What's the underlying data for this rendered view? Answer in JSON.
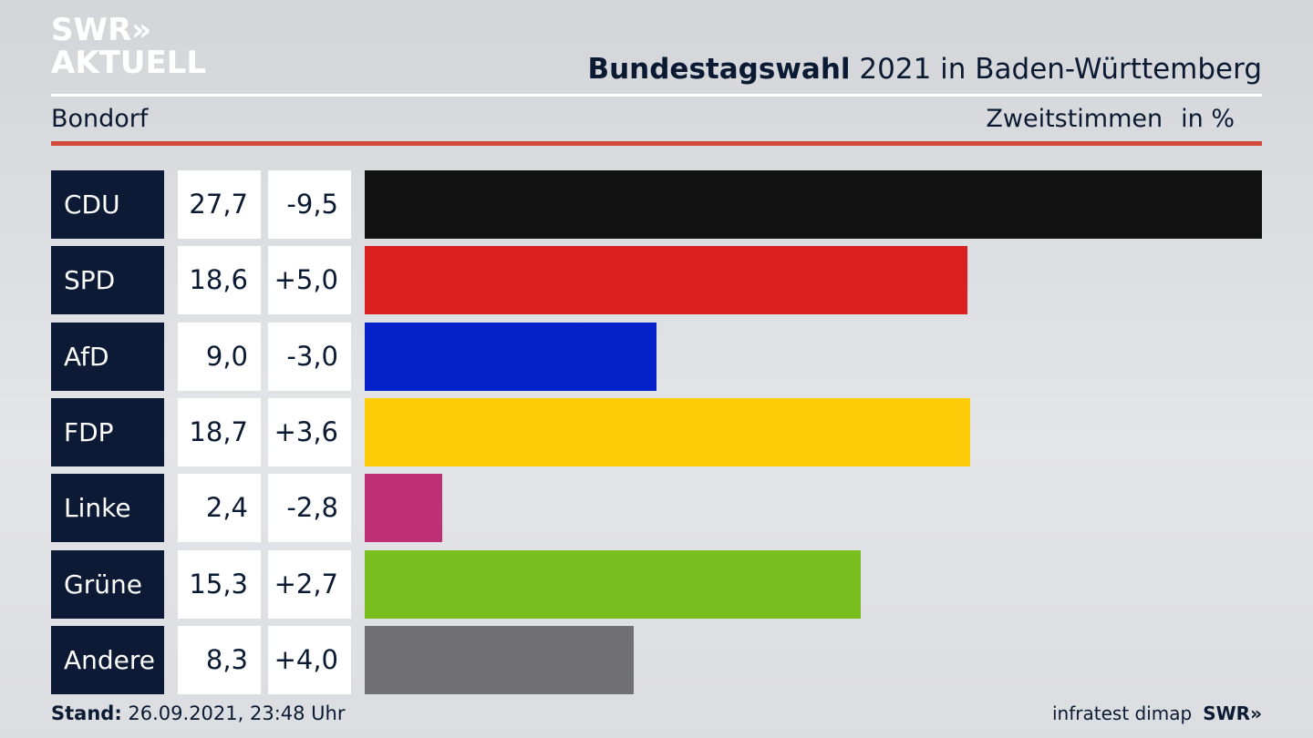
{
  "logo": {
    "line1": "SWR»",
    "line2": "AKTUELL"
  },
  "header": {
    "title_bold": "Bundestagswahl",
    "title_rest": " 2021 in Baden-Württemberg",
    "region": "Bondorf",
    "vote_type": "Zweitstimmen",
    "unit": "in %"
  },
  "chart_data": {
    "type": "bar",
    "title": "Bundestagswahl 2021 in Baden-Württemberg – Bondorf, Zweitstimmen in %",
    "categories": [
      "CDU",
      "SPD",
      "AfD",
      "FDP",
      "Linke",
      "Grüne",
      "Andere"
    ],
    "values": [
      27.7,
      18.6,
      9.0,
      18.7,
      2.4,
      15.3,
      8.3
    ],
    "value_labels": [
      "27,7",
      "18,6",
      "9,0",
      "18,7",
      "2,4",
      "15,3",
      "8,3"
    ],
    "diff_labels": [
      "-9,5",
      "+5,0",
      "-3,0",
      "+3,6",
      "-2,8",
      "+2,7",
      "+4,0"
    ],
    "colors": [
      "#121212",
      "#d91f1f",
      "#0521c9",
      "#ffcc0a",
      "#bd3075",
      "#78be1e",
      "#717173"
    ],
    "xlim": [
      0,
      27.7
    ]
  },
  "footer": {
    "stand_label": "Stand:",
    "stand_value": " 26.09.2021, 23:48 Uhr",
    "source": "infratest dimap",
    "brand": "SWR»"
  }
}
